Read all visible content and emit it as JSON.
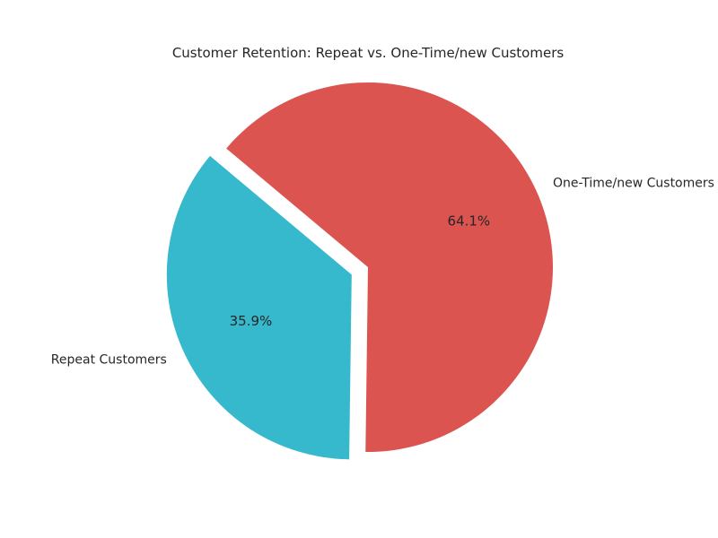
{
  "chart_data": {
    "type": "pie",
    "title": "Customer Retention: Repeat vs. One-Time/new Customers",
    "slices": [
      {
        "label": "Repeat Customers",
        "value": 35.9,
        "percent_label": "35.9%",
        "color": "#36b9cc",
        "exploded": true
      },
      {
        "label": "One-Time/new Customers",
        "value": 64.1,
        "percent_label": "64.1%",
        "color": "#db5450",
        "exploded": false
      }
    ],
    "start_angle_deg": 140,
    "direction": "counterclockwise",
    "legend": "none"
  }
}
